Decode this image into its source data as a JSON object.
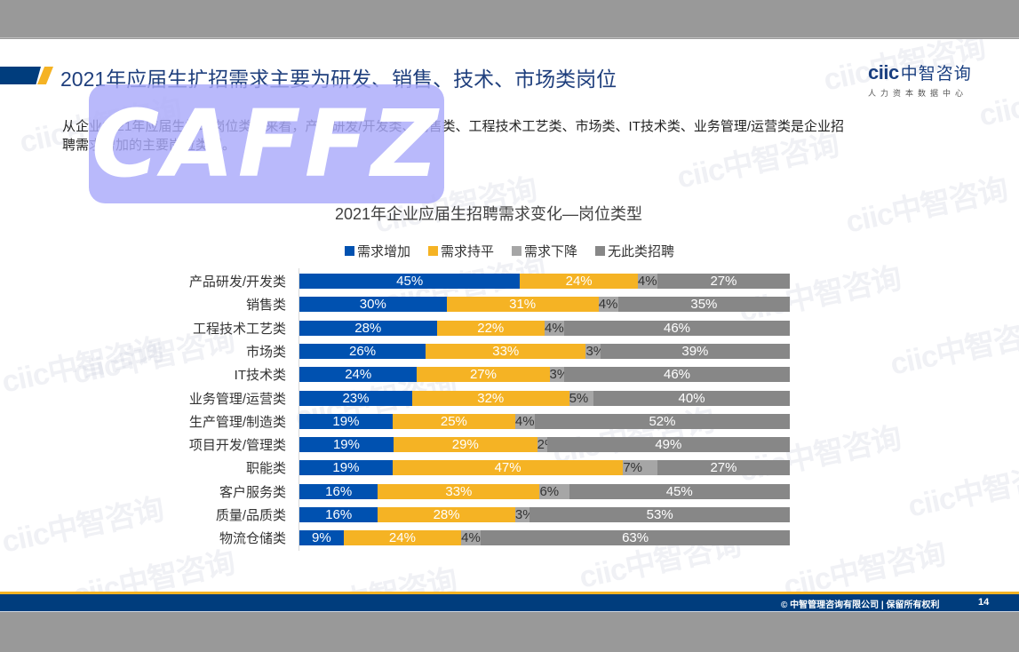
{
  "slide": {
    "title": "2021年应届生扩招需求主要为研发、销售、技术、市场类岗位",
    "intro_line1": "从企业2021年应届生招聘岗位类型来看，产品研发/开发类、销售类、工程技术工艺类、市场类、IT技术类、业务管理/运营类是企业招",
    "intro_line2": "聘需求增加的主要岗位类型。",
    "overlay_text": "CAFFZ"
  },
  "logo": {
    "brand": "ciic",
    "brand_cn": "中智咨询",
    "subtitle": "人力资本数据中心"
  },
  "watermark": {
    "text": "ciic中智咨询"
  },
  "footer": {
    "copyright": "© 中智管理咨询有限公司 | 保留所有权利",
    "page_number": "14"
  },
  "colors": {
    "increase": "#0051B0",
    "flat": "#F5B324",
    "decrease": "#A6A6A6",
    "none": "#878787",
    "title_blue": "#1F3F7D",
    "footer_navy": "#003D7D"
  },
  "chart_data": {
    "type": "bar",
    "orientation": "horizontal",
    "stacked": true,
    "percent": true,
    "title": "2021年企业应届生招聘需求变化—岗位类型",
    "xlabel": "",
    "ylabel": "",
    "xlim": [
      0,
      100
    ],
    "grid": false,
    "legend_position": "top",
    "categories": [
      "产品研发/开发类",
      "销售类",
      "工程技术工艺类",
      "市场类",
      "IT技术类",
      "业务管理/运营类",
      "生产管理/制造类",
      "项目开发/管理类",
      "职能类",
      "客户服务类",
      "质量/品质类",
      "物流仓储类"
    ],
    "series": [
      {
        "name": "需求增加",
        "color": "#0051B0",
        "values": [
          45,
          30,
          28,
          26,
          24,
          23,
          19,
          19,
          19,
          16,
          16,
          9
        ]
      },
      {
        "name": "需求持平",
        "color": "#F5B324",
        "values": [
          24,
          31,
          22,
          33,
          27,
          32,
          25,
          29,
          47,
          33,
          28,
          24
        ]
      },
      {
        "name": "需求下降",
        "color": "#A6A6A6",
        "values": [
          4,
          4,
          4,
          3,
          3,
          5,
          4,
          2,
          7,
          6,
          3,
          4
        ]
      },
      {
        "name": "无此类招聘",
        "color": "#878787",
        "values": [
          27,
          35,
          46,
          39,
          46,
          40,
          52,
          49,
          27,
          45,
          53,
          63
        ]
      }
    ]
  }
}
